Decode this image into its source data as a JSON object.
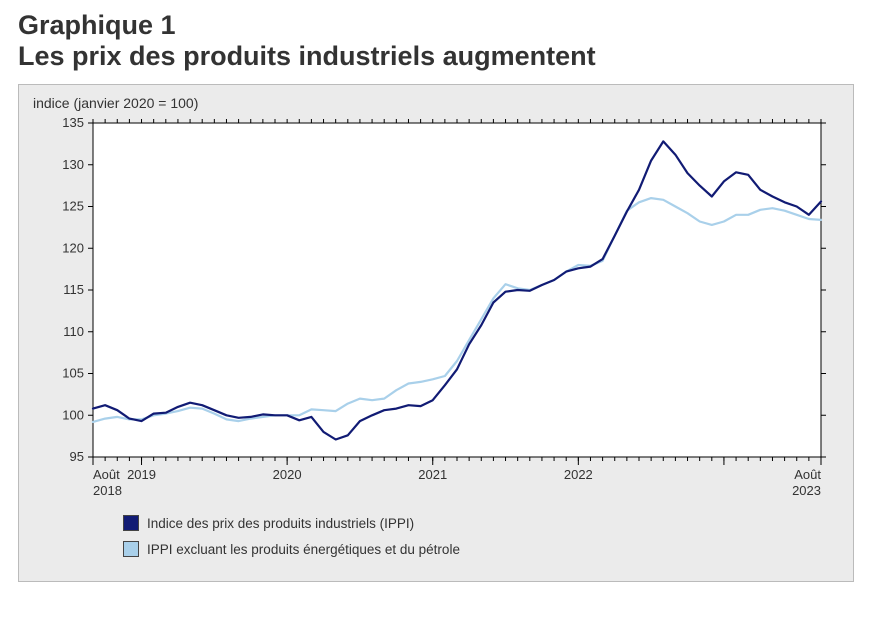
{
  "header": {
    "chart_number": "Graphique 1",
    "title": "Les prix des produits industriels augmentent"
  },
  "chart": {
    "type": "line",
    "y_axis_title": "indice (janvier 2020 = 100)",
    "background_color": "#ebebeb",
    "plot_background": "#ffffff",
    "border_color": "#bbbbbb",
    "axis_color": "#000000",
    "tick_label_fontsize": 13,
    "title_fontsize": 27,
    "xlim": [
      0,
      60
    ],
    "ylim": [
      95,
      135
    ],
    "yticks": [
      95,
      100,
      105,
      110,
      115,
      120,
      125,
      130,
      135
    ],
    "x_major_positions": [
      0,
      4,
      16,
      28,
      40,
      52,
      60
    ],
    "x_major_labels_top": [
      "Août",
      "",
      "",
      "",
      "",
      "",
      "Août"
    ],
    "x_major_labels_bottom": [
      "2018",
      "2019",
      "2020",
      "2021",
      "2022",
      "",
      "2023"
    ],
    "x_minor_interval": 1,
    "series": [
      {
        "name": "Indice des prix des produits industriels (IPPI)",
        "color": "#111b74",
        "width": 2.2,
        "data": [
          100.8,
          101.2,
          100.6,
          99.6,
          99.3,
          100.2,
          100.3,
          101.0,
          101.5,
          101.2,
          100.6,
          100.0,
          99.7,
          99.8,
          100.1,
          100.0,
          100.0,
          99.4,
          99.8,
          98.0,
          97.1,
          97.6,
          99.3,
          100.0,
          100.6,
          100.8,
          101.2,
          101.1,
          101.8,
          103.6,
          105.5,
          108.5,
          110.8,
          113.5,
          114.8,
          115.0,
          114.9,
          115.6,
          116.2,
          117.2,
          117.6,
          117.8,
          118.7,
          121.5,
          124.4,
          127.0,
          130.5,
          132.8,
          131.2,
          129.0,
          127.5,
          126.2,
          128.0,
          129.1,
          128.8,
          127.0,
          126.2,
          125.5,
          125.0,
          124.0,
          125.6
        ]
      },
      {
        "name": "IPPI excluant les produits énergétiques et du pétrole",
        "color": "#a9d0ea",
        "width": 2.2,
        "data": [
          99.2,
          99.6,
          99.8,
          99.5,
          99.5,
          100.0,
          100.2,
          100.5,
          100.9,
          100.8,
          100.2,
          99.5,
          99.3,
          99.6,
          99.8,
          100.0,
          100.0,
          100.0,
          100.7,
          100.6,
          100.5,
          101.4,
          102.0,
          101.8,
          102.0,
          103.0,
          103.8,
          104.0,
          104.3,
          104.7,
          106.5,
          109.0,
          111.5,
          114.0,
          115.7,
          115.2,
          115.0,
          115.6,
          116.2,
          117.2,
          118.0,
          117.9,
          118.5,
          121.5,
          124.5,
          125.5,
          126.0,
          125.8,
          125.0,
          124.2,
          123.2,
          122.8,
          123.2,
          124.0,
          124.0,
          124.6,
          124.8,
          124.5,
          124.0,
          123.5,
          123.4
        ]
      }
    ],
    "legend": {
      "items": [
        {
          "label": "Indice des prix des produits industriels (IPPI)",
          "color": "#111b74"
        },
        {
          "label": "IPPI excluant les produits énergétiques et du pétrole",
          "color": "#a9d0ea"
        }
      ]
    }
  }
}
